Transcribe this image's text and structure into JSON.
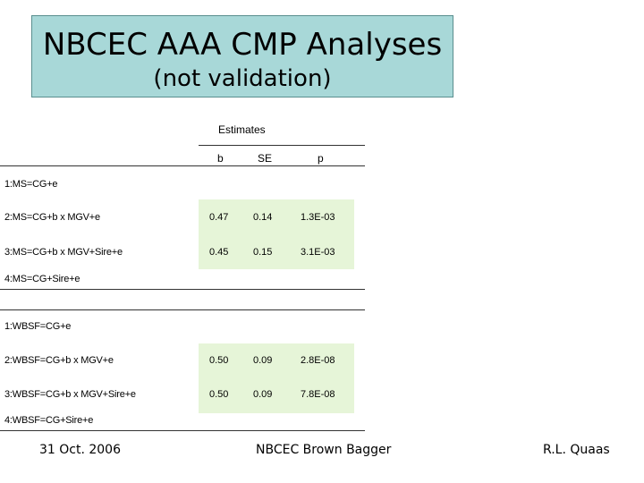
{
  "title": {
    "main": "NBCEC AAA CMP Analyses",
    "sub": "(not validation)"
  },
  "table": {
    "group_header": "Estimates",
    "columns": [
      "b",
      "SE",
      "p"
    ],
    "rows": [
      {
        "label": "1:MS=CG+e",
        "b": "",
        "se": "",
        "p": ""
      },
      {
        "label": "2:MS=CG+b x MGV+e",
        "b": "0.47",
        "se": "0.14",
        "p": "1.3E-03"
      },
      {
        "label": "3:MS=CG+b x MGV+Sire+e",
        "b": "0.45",
        "se": "0.15",
        "p": "3.1E-03"
      },
      {
        "label": "4:MS=CG+Sire+e",
        "b": "",
        "se": "",
        "p": ""
      },
      {
        "label": "1:WBSF=CG+e",
        "b": "",
        "se": "",
        "p": ""
      },
      {
        "label": "2:WBSF=CG+b x MGV+e",
        "b": "0.50",
        "se": "0.09",
        "p": "2.8E-08"
      },
      {
        "label": "3:WBSF=CG+b x MGV+Sire+e",
        "b": "0.50",
        "se": "0.09",
        "p": "7.8E-08"
      },
      {
        "label": "4:WBSF=CG+Sire+e",
        "b": "",
        "se": "",
        "p": ""
      }
    ]
  },
  "footer": {
    "date": "31 Oct. 2006",
    "center": "NBCEC Brown Bagger",
    "author": "R.L. Quaas"
  }
}
